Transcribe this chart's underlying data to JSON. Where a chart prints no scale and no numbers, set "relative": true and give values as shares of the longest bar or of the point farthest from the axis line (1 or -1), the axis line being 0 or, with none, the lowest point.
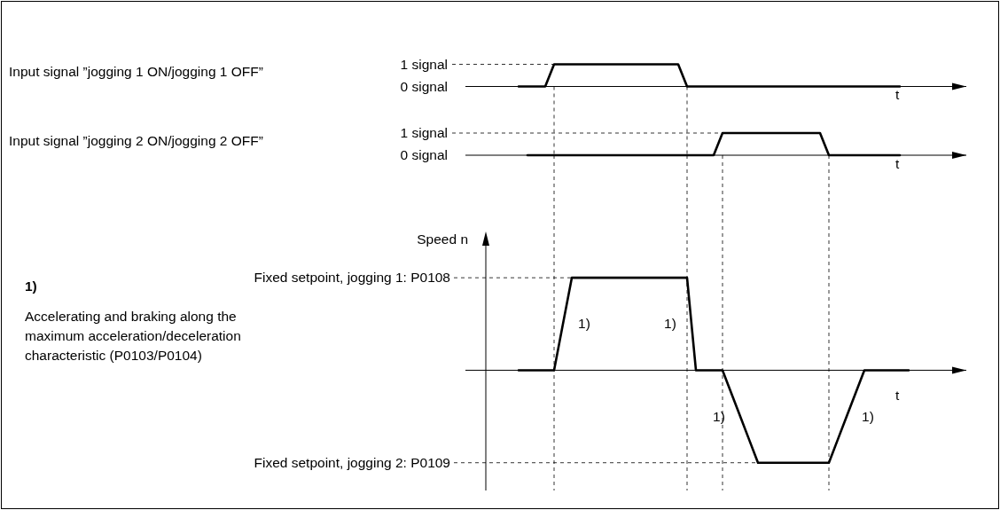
{
  "chart_data": [
    {
      "type": "line",
      "ylabel": "Input signal ”jogging 1 ON/jogging 1 OFF”",
      "xlabel": "t",
      "grid": "x",
      "relative": true,
      "annotations": [
        "1 signal",
        "0 signal"
      ],
      "categories": [
        null,
        null,
        null,
        null,
        null,
        null,
        null,
        null,
        null,
        null,
        null,
        null,
        null,
        null,
        null,
        null,
        null,
        null,
        null,
        null,
        null,
        null,
        null,
        null,
        null,
        null,
        null,
        null,
        null,
        null,
        null,
        null,
        null,
        null,
        null,
        null,
        null,
        null,
        null,
        null,
        null,
        null,
        null,
        null,
        null,
        null,
        null,
        null,
        null,
        null,
        null,
        null,
        null,
        null,
        null,
        null,
        null
      ],
      "series": [
        {
          "color": "#000000",
          "values": [
            null,
            null,
            null,
            null,
            null,
            null,
            0,
            0,
            0,
            0,
            1,
            1,
            1,
            1,
            1,
            1,
            1,
            1,
            1,
            1,
            1,
            1,
            1,
            1,
            1,
            0,
            0,
            0,
            0,
            0,
            0,
            0,
            0,
            0,
            0,
            0,
            0,
            0,
            0,
            0,
            0,
            0,
            0,
            0,
            0,
            0,
            0,
            0,
            0,
            0,
            null,
            null,
            null,
            null,
            null,
            null,
            null
          ]
        }
      ]
    },
    {
      "type": "line",
      "ylabel": "Input signal ”jogging 2 ON/jogging 2 OFF”",
      "xlabel": "t",
      "grid": "x",
      "relative": true,
      "annotations": [
        "1 signal",
        "0 signal"
      ],
      "categories": [
        null,
        null,
        null,
        null,
        null,
        null,
        null,
        null,
        null,
        null,
        null,
        null,
        null,
        null,
        null,
        null,
        null,
        null,
        null,
        null,
        null,
        null,
        null,
        null,
        null,
        null,
        null,
        null,
        null,
        null,
        null,
        null,
        null,
        null,
        null,
        null,
        null,
        null,
        null,
        null,
        null,
        null,
        null,
        null,
        null,
        null,
        null,
        null,
        null,
        null,
        null,
        null,
        null,
        null,
        null,
        null,
        null
      ],
      "series": [
        {
          "color": "#000000",
          "values": [
            null,
            null,
            null,
            null,
            null,
            null,
            null,
            0,
            0,
            0,
            0,
            0,
            0,
            0,
            0,
            0,
            0,
            0,
            0,
            0,
            0,
            0,
            0,
            0,
            0,
            0,
            0,
            0,
            0,
            1,
            1,
            1,
            1,
            1,
            1,
            1,
            1,
            1,
            1,
            1,
            1,
            0,
            0,
            0,
            0,
            0,
            0,
            0,
            0,
            0,
            null,
            null,
            null,
            null,
            null,
            null,
            null
          ]
        }
      ]
    },
    {
      "type": "line",
      "ylabel": "Speed n",
      "xlabel": "t",
      "relative": true,
      "grid": "x",
      "categories": [
        null,
        null,
        null,
        null,
        null,
        null,
        null,
        null,
        null,
        null,
        null,
        null,
        null,
        null,
        null,
        null,
        null,
        null,
        null,
        null,
        null,
        null,
        null,
        null,
        null,
        null,
        null,
        null,
        null,
        null,
        null,
        null,
        null,
        null,
        null,
        null,
        null,
        null,
        null,
        null,
        null,
        null,
        null,
        null,
        null,
        null,
        null,
        null,
        null,
        null,
        null,
        null,
        null,
        null,
        null,
        null,
        null
      ],
      "series": [
        {
          "color": "#000000",
          "values": [
            null,
            null,
            null,
            null,
            null,
            null,
            0,
            0,
            0,
            0,
            0,
            0.5,
            1,
            1,
            1,
            1,
            1,
            1,
            1,
            1,
            1,
            1,
            1,
            1,
            1,
            1,
            0,
            0,
            0,
            0,
            -0.25,
            -0.5,
            -0.75,
            -1,
            -1,
            -1,
            -1,
            -1,
            -1,
            -1,
            -1,
            -1,
            -0.75,
            -0.5,
            -0.25,
            0,
            0,
            0,
            0,
            0,
            0,
            null,
            null,
            null,
            null,
            null,
            null
          ]
        }
      ],
      "annotations": [
        "1)",
        "Accelerating and braking along the maximum acceleration/deceleration characteristic (P0103/P0104)",
        "Fixed setpoint, jogging 1: P0108",
        "Fixed setpoint, jogging 2: P0109",
        "1)",
        "1)",
        "1)",
        "1)"
      ]
    }
  ]
}
